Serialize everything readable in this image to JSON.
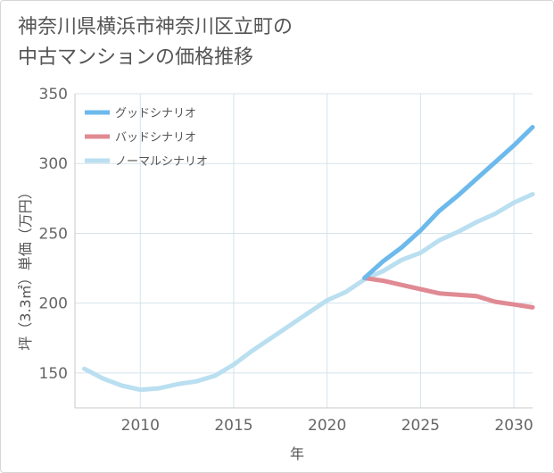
{
  "title": {
    "line1": "神奈川県横浜市神奈川区立町の",
    "line2": "中古マンションの価格推移"
  },
  "chart_data": {
    "type": "line",
    "xlabel": "年",
    "ylabel": "坪（3.3㎡）単価（万円）",
    "xlim": [
      2006.5,
      2031
    ],
    "ylim": [
      125,
      350
    ],
    "x_ticks": [
      "2010",
      "2015",
      "2020",
      "2025",
      "2030"
    ],
    "y_ticks": [
      "150",
      "200",
      "250",
      "300",
      "350"
    ],
    "grid": true,
    "legend_position": "top-left",
    "series": [
      {
        "name": "グッドシナリオ",
        "color": "#6cb9ec",
        "x": [
          2022,
          2023,
          2024,
          2025,
          2026,
          2027,
          2028,
          2029,
          2030,
          2031
        ],
        "y": [
          218,
          230,
          240,
          252,
          266,
          277,
          289,
          301,
          313,
          326
        ]
      },
      {
        "name": "バッドシナリオ",
        "color": "#e08a93",
        "x": [
          2022,
          2023,
          2024,
          2025,
          2026,
          2027,
          2028,
          2029,
          2030,
          2031
        ],
        "y": [
          218,
          216,
          213,
          210,
          207,
          206,
          205,
          201,
          199,
          197
        ]
      },
      {
        "name": "ノーマルシナリオ",
        "color": "#b9dff0",
        "x": [
          2007,
          2008,
          2009,
          2010,
          2011,
          2012,
          2013,
          2014,
          2015,
          2016,
          2017,
          2018,
          2019,
          2020,
          2021,
          2022,
          2023,
          2024,
          2025,
          2026,
          2027,
          2028,
          2029,
          2030,
          2031
        ],
        "y": [
          153,
          146,
          141,
          138,
          139,
          142,
          144,
          148,
          156,
          166,
          175,
          184,
          193,
          202,
          208,
          217,
          223,
          231,
          236,
          245,
          251,
          258,
          264,
          272,
          278
        ]
      }
    ]
  }
}
